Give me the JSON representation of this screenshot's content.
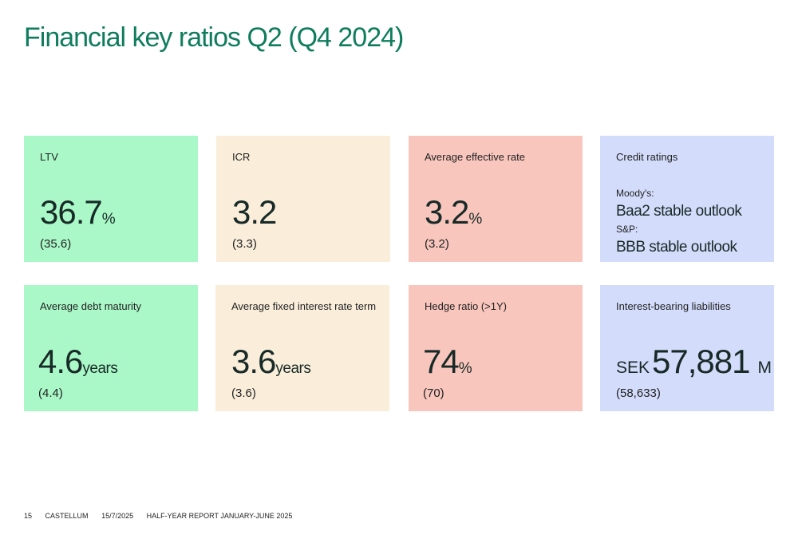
{
  "page": {
    "title": "Financial key ratios Q2 (Q4 2024)"
  },
  "cards": {
    "ltv": {
      "label": "LTV",
      "value": "36.7",
      "unit": "%",
      "previous": "(35.6)"
    },
    "icr": {
      "label": "ICR",
      "value": "3.2",
      "previous": "(3.3)"
    },
    "avg_rate": {
      "label": "Average effective rate",
      "value": "3.2",
      "unit": "%",
      "previous": "(3.2)"
    },
    "credit": {
      "label": "Credit ratings",
      "moodys_label": "Moody's:",
      "moodys_value": "Baa2 stable outlook",
      "sp_label": "S&P:",
      "sp_value": "BBB stable outlook"
    },
    "debt_maturity": {
      "label": "Average debt maturity",
      "value": "4.6",
      "unit": "years",
      "previous": "(4.4)"
    },
    "fixed_term": {
      "label": "Average fixed interest rate term",
      "value": "3.6",
      "unit": "years",
      "previous": "(3.6)"
    },
    "hedge": {
      "label": "Hedge ratio (>1Y)",
      "value": "74",
      "unit": "%",
      "previous": "(70)"
    },
    "liabilities": {
      "label": "Interest-bearing liabilities",
      "prefix": "SEK",
      "value": "57,881",
      "unit": "M",
      "previous": "(58,633)"
    }
  },
  "colors": {
    "title": "#0f7d5c",
    "green": "#aaf8c8",
    "cream": "#faeedb",
    "pink": "#f8c6bd",
    "blue": "#d3dcfb"
  },
  "footer": {
    "page_number": "15",
    "company": "CASTELLUM",
    "date": "15/7/2025",
    "report": "HALF-YEAR REPORT JANUARY-JUNE 2025"
  }
}
